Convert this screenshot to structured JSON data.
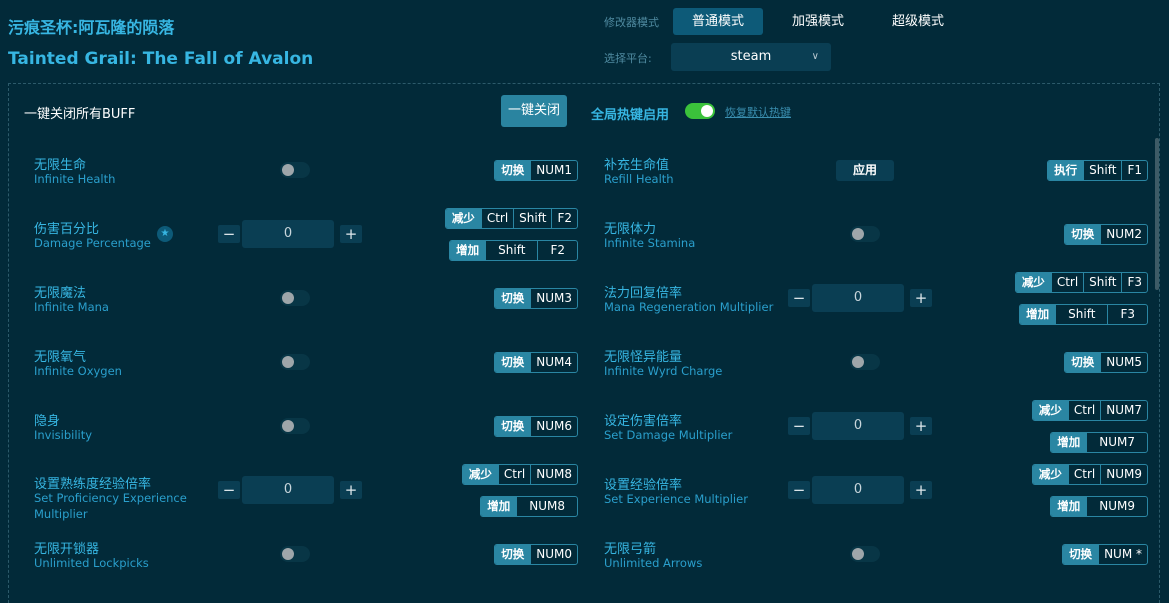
{
  "header": {
    "title_zh": "污痕圣杯:阿瓦隆的陨落",
    "title_en": "Tainted Grail: The Fall of Avalon"
  },
  "mode": {
    "label": "修改器模式",
    "options": [
      "普通模式",
      "加强模式",
      "超级模式"
    ],
    "selected": "普通模式"
  },
  "platform": {
    "label": "选择平台:",
    "value": "steam"
  },
  "toolbar": {
    "close_all_label": "一键关闭所有BUFF",
    "close_button": "一键关闭",
    "hotkeys_label": "全局热键启用",
    "hotkeys_enabled": true,
    "restore_link": "恢复默认热键"
  },
  "colors": {
    "accent": "#37b6e2",
    "background": "#022a39",
    "badge": "#2a86a3",
    "toggle_on": "#3bc23b"
  },
  "left": [
    {
      "zh": "无限生命",
      "en": "Infinite Health",
      "type": "toggle",
      "on": false,
      "hotkeys": [
        {
          "action": "切换",
          "keys": [
            "NUM1"
          ]
        }
      ]
    },
    {
      "zh": "伤害百分比",
      "en": "Damage Percentage",
      "type": "stepper",
      "value": "0",
      "star": true,
      "hotkeys": [
        {
          "action": "减少",
          "keys": [
            "Ctrl",
            "Shift",
            "F2"
          ]
        },
        {
          "action": "增加",
          "keys": [
            "Shift",
            "F2"
          ]
        }
      ]
    },
    {
      "zh": "无限魔法",
      "en": "Infinite Mana",
      "type": "toggle",
      "on": false,
      "hotkeys": [
        {
          "action": "切换",
          "keys": [
            "NUM3"
          ]
        }
      ]
    },
    {
      "zh": "无限氧气",
      "en": "Infinite Oxygen",
      "type": "toggle",
      "on": false,
      "hotkeys": [
        {
          "action": "切换",
          "keys": [
            "NUM4"
          ]
        }
      ]
    },
    {
      "zh": "隐身",
      "en": "Invisibility",
      "type": "toggle",
      "on": false,
      "hotkeys": [
        {
          "action": "切换",
          "keys": [
            "NUM6"
          ]
        }
      ]
    },
    {
      "zh": "设置熟练度经验倍率",
      "en": "Set Proficiency Experience Multiplier",
      "type": "stepper",
      "value": "0",
      "hotkeys": [
        {
          "action": "减少",
          "keys": [
            "Ctrl",
            "NUM8"
          ]
        },
        {
          "action": "增加",
          "keys": [
            "NUM8"
          ]
        }
      ]
    },
    {
      "zh": "无限开锁器",
      "en": "Unlimited Lockpicks",
      "type": "toggle",
      "on": false,
      "hotkeys": [
        {
          "action": "切换",
          "keys": [
            "NUM0"
          ]
        }
      ]
    }
  ],
  "right": [
    {
      "zh": "补充生命值",
      "en": "Refill Health",
      "type": "button",
      "button": "应用",
      "hotkeys": [
        {
          "action": "执行",
          "keys": [
            "Shift",
            "F1"
          ]
        }
      ]
    },
    {
      "zh": "无限体力",
      "en": "Infinite Stamina",
      "type": "toggle",
      "on": false,
      "hotkeys": [
        {
          "action": "切换",
          "keys": [
            "NUM2"
          ]
        }
      ]
    },
    {
      "zh": "法力回复倍率",
      "en": "Mana Regeneration Multiplier",
      "type": "stepper",
      "value": "0",
      "hotkeys": [
        {
          "action": "减少",
          "keys": [
            "Ctrl",
            "Shift",
            "F3"
          ]
        },
        {
          "action": "增加",
          "keys": [
            "Shift",
            "F3"
          ]
        }
      ]
    },
    {
      "zh": "无限怪异能量",
      "en": "Infinite Wyrd Charge",
      "type": "toggle",
      "on": false,
      "hotkeys": [
        {
          "action": "切换",
          "keys": [
            "NUM5"
          ]
        }
      ]
    },
    {
      "zh": "设定伤害倍率",
      "en": "Set Damage Multiplier",
      "type": "stepper",
      "value": "0",
      "hotkeys": [
        {
          "action": "减少",
          "keys": [
            "Ctrl",
            "NUM7"
          ]
        },
        {
          "action": "增加",
          "keys": [
            "NUM7"
          ]
        }
      ]
    },
    {
      "zh": "设置经验倍率",
      "en": "Set Experience Multiplier",
      "type": "stepper",
      "value": "0",
      "hotkeys": [
        {
          "action": "减少",
          "keys": [
            "Ctrl",
            "NUM9"
          ]
        },
        {
          "action": "增加",
          "keys": [
            "NUM9"
          ]
        }
      ]
    },
    {
      "zh": "无限弓箭",
      "en": "Unlimited Arrows",
      "type": "toggle",
      "on": false,
      "hotkeys": [
        {
          "action": "切换",
          "keys": [
            "NUM *"
          ]
        }
      ]
    }
  ]
}
